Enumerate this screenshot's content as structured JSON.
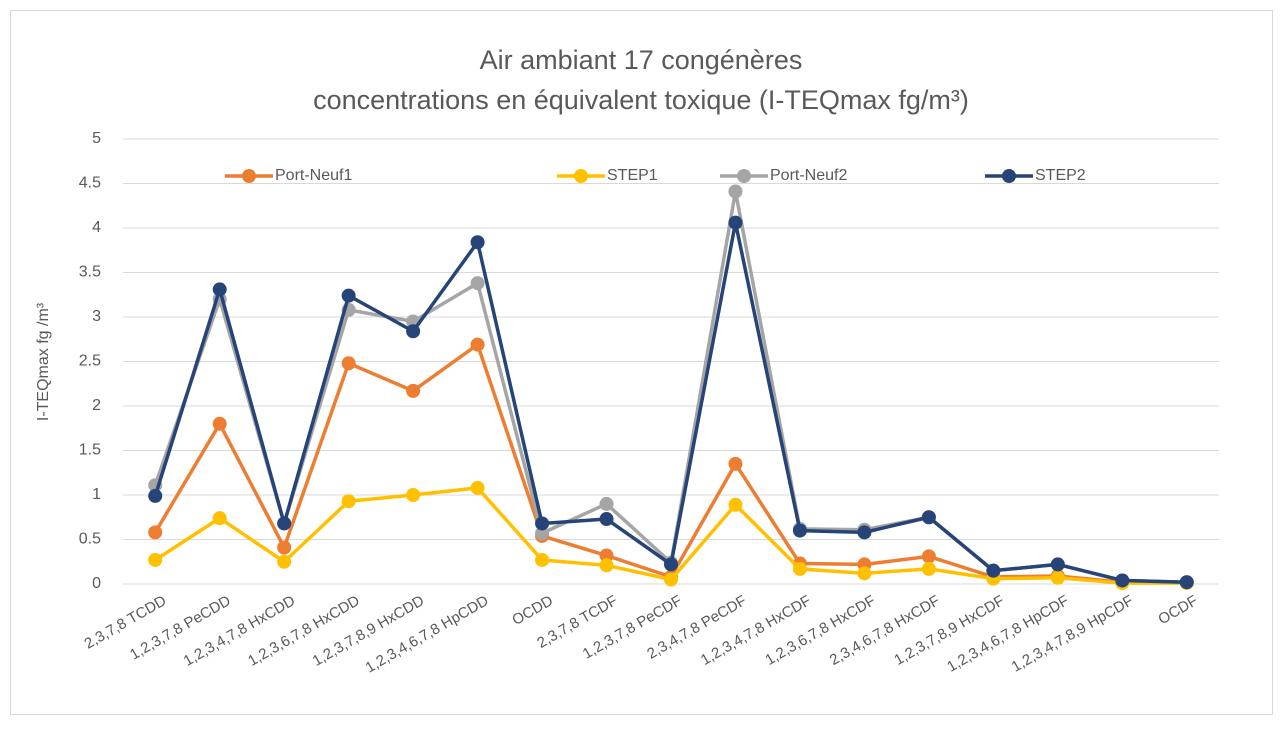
{
  "chart_data": {
    "type": "line",
    "title": [
      "Air ambiant 17 congénères",
      "concentrations en équivalent toxique (I-TEQmax fg/m³)"
    ],
    "y_label": "I-TEQmax fg /m³",
    "categories": [
      "2,3,7,8 TCDD",
      "1,2,3,7,8 PeCDD",
      "1,2,3,4,7,8 HxCDD",
      "1,2,3,6,7,8 HxCDD",
      "1,2,3,7,8,9 HxCDD",
      "1,2,3,4,6,7,8 HpCDD",
      "OCDD",
      "2,3,7,8 TCDF",
      "1,2,3,7,8 PeCDF",
      "2,3,4,7,8 PeCDF",
      "1,2,3,4,7,8 HxCDF",
      "1,2,3,6,7,8 HxCDF",
      "2,3,4,6,7,8 HxCDF",
      "1,2,3,7,8,9 HxCDF",
      "1,2,3,4,6,7,8 HpCDF",
      "1,2,3,4,7,8,9 HpCDF",
      "OCDF"
    ],
    "series": [
      {
        "name": "Port-Neuf1",
        "color": "#ed7d31",
        "values": [
          0.58,
          1.8,
          0.41,
          2.48,
          2.17,
          2.69,
          0.54,
          0.32,
          0.08,
          1.35,
          0.23,
          0.22,
          0.31,
          0.08,
          0.09,
          0.02,
          0.02
        ]
      },
      {
        "name": "STEP1",
        "color": "#ffc000",
        "values": [
          0.27,
          0.74,
          0.25,
          0.93,
          1.0,
          1.08,
          0.27,
          0.21,
          0.05,
          0.89,
          0.17,
          0.12,
          0.17,
          0.06,
          0.07,
          0.01,
          0.01
        ]
      },
      {
        "name": "Port-Neuf2",
        "color": "#a5a5a5",
        "values": [
          1.11,
          3.2,
          0.68,
          3.08,
          2.95,
          3.38,
          0.57,
          0.9,
          0.24,
          4.41,
          0.62,
          0.61,
          0.75,
          0.15,
          0.22,
          0.04,
          0.02
        ]
      },
      {
        "name": "STEP2",
        "color": "#264478",
        "values": [
          0.99,
          3.31,
          0.68,
          3.24,
          2.84,
          3.84,
          0.68,
          0.73,
          0.22,
          4.06,
          0.6,
          0.58,
          0.75,
          0.15,
          0.22,
          0.04,
          0.02
        ]
      }
    ],
    "ylim": [
      0,
      5
    ],
    "yticks": [
      0,
      0.5,
      1,
      1.5,
      2,
      2.5,
      3,
      3.5,
      4,
      4.5,
      5
    ],
    "grid": true,
    "legend": "top"
  }
}
